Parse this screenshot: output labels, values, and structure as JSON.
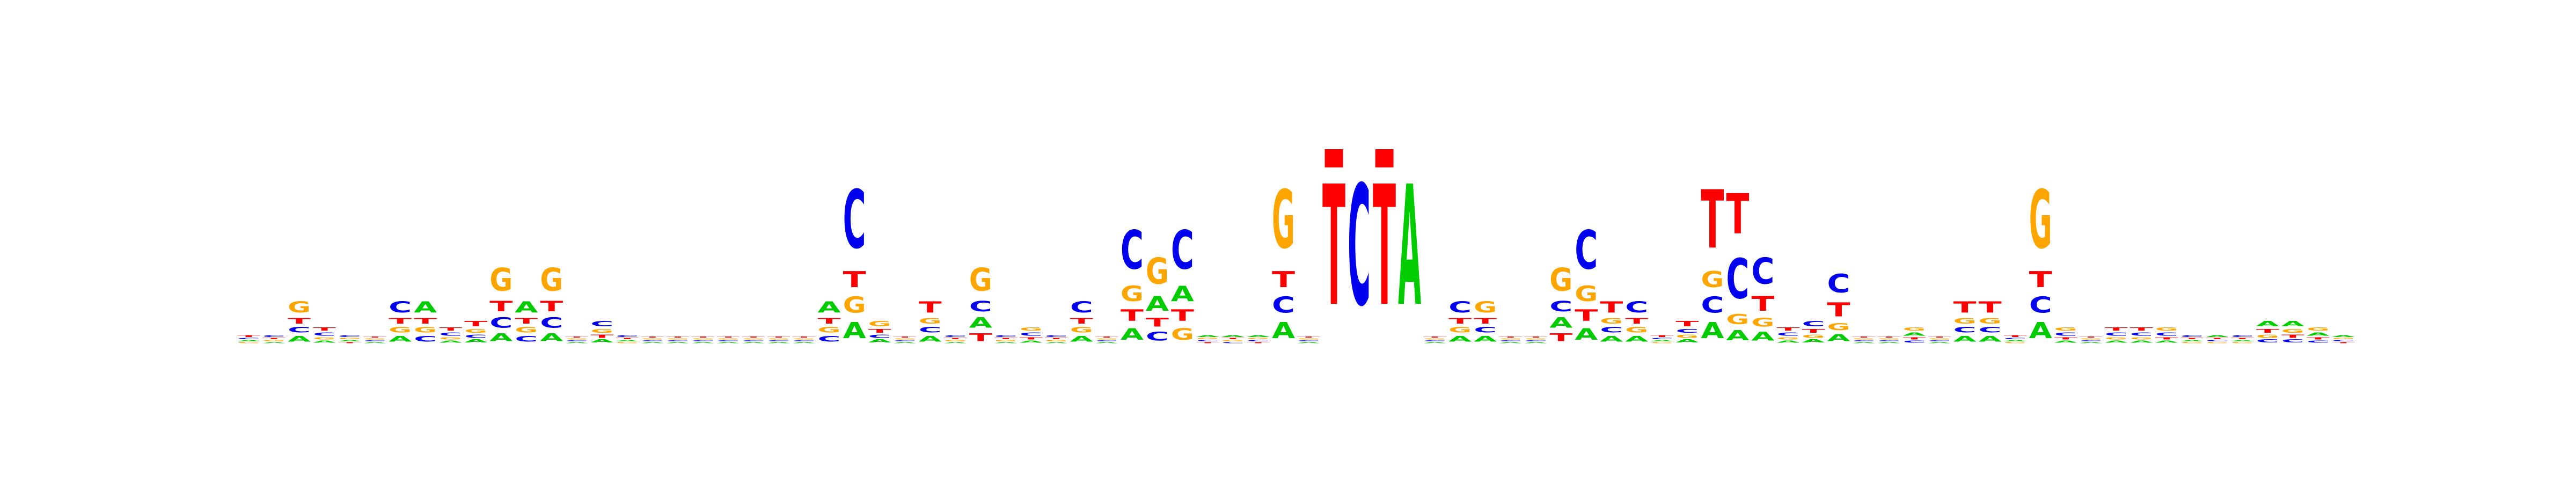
{
  "chart_data": {
    "type": "sequence-logo",
    "alphabet": [
      "A",
      "C",
      "G",
      "T"
    ],
    "colors": {
      "A": "#00cc00",
      "C": "#0000ee",
      "G": "#ffa500",
      "T": "#ff0000"
    },
    "axes_shown": false,
    "grid": false,
    "units": "bits",
    "ylim": [
      0,
      2
    ],
    "info_scale_bits": 0.075,
    "columns": [
      {
        "A": 0.25,
        "C": 0.25,
        "G": 0.2,
        "T": 0.3
      },
      {
        "A": 0.2,
        "C": 0.3,
        "G": 0.25,
        "T": 0.25
      },
      {
        "A": 0.2,
        "C": 0.2,
        "G": 0.4,
        "T": 0.2
      },
      {
        "A": 0.2,
        "C": 0.3,
        "G": 0.2,
        "T": 0.3
      },
      {
        "A": 0.25,
        "C": 0.3,
        "G": 0.25,
        "T": 0.2
      },
      {
        "A": 0.25,
        "C": 0.25,
        "G": 0.25,
        "T": 0.25
      },
      {
        "A": 0.2,
        "C": 0.4,
        "G": 0.2,
        "T": 0.2
      },
      {
        "A": 0.4,
        "C": 0.2,
        "G": 0.2,
        "T": 0.2
      },
      {
        "A": 0.2,
        "C": 0.3,
        "G": 0.2,
        "T": 0.3
      },
      {
        "A": 0.2,
        "C": 0.2,
        "G": 0.25,
        "T": 0.35
      },
      {
        "A": 0.15,
        "C": 0.2,
        "G": 0.45,
        "T": 0.2
      },
      {
        "A": 0.4,
        "C": 0.2,
        "G": 0.2,
        "T": 0.2
      },
      {
        "A": 0.15,
        "C": 0.2,
        "G": 0.45,
        "T": 0.2
      },
      {
        "A": 0.25,
        "C": 0.25,
        "G": 0.25,
        "T": 0.25
      },
      {
        "A": 0.2,
        "C": 0.35,
        "G": 0.25,
        "T": 0.2
      },
      {
        "A": 0.25,
        "C": 0.3,
        "G": 0.2,
        "T": 0.25
      },
      {
        "A": 0.25,
        "C": 0.25,
        "G": 0.25,
        "T": 0.25
      },
      {
        "A": 0.25,
        "C": 0.25,
        "G": 0.25,
        "T": 0.25
      },
      {
        "A": 0.25,
        "C": 0.25,
        "G": 0.25,
        "T": 0.25
      },
      {
        "A": 0.25,
        "C": 0.25,
        "G": 0.25,
        "T": 0.25
      },
      {
        "A": 0.25,
        "C": 0.25,
        "G": 0.25,
        "T": 0.25
      },
      {
        "A": 0.25,
        "C": 0.25,
        "G": 0.25,
        "T": 0.25
      },
      {
        "A": 0.25,
        "C": 0.25,
        "G": 0.25,
        "T": 0.25
      },
      {
        "A": 0.4,
        "C": 0.2,
        "G": 0.2,
        "T": 0.2
      },
      {
        "A": 0.15,
        "C": 0.55,
        "G": 0.15,
        "T": 0.15
      },
      {
        "A": 0.2,
        "C": 0.2,
        "G": 0.35,
        "T": 0.25
      },
      {
        "A": 0.25,
        "C": 0.25,
        "G": 0.25,
        "T": 0.25
      },
      {
        "A": 0.2,
        "C": 0.2,
        "G": 0.2,
        "T": 0.4
      },
      {
        "A": 0.2,
        "C": 0.3,
        "G": 0.25,
        "T": 0.25
      },
      {
        "A": 0.2,
        "C": 0.2,
        "G": 0.45,
        "T": 0.15
      },
      {
        "A": 0.2,
        "C": 0.3,
        "G": 0.25,
        "T": 0.25
      },
      {
        "A": 0.2,
        "C": 0.3,
        "G": 0.3,
        "T": 0.2
      },
      {
        "A": 0.2,
        "C": 0.3,
        "G": 0.25,
        "T": 0.25
      },
      {
        "A": 0.2,
        "C": 0.4,
        "G": 0.2,
        "T": 0.2
      },
      {
        "A": 0.25,
        "C": 0.25,
        "G": 0.25,
        "T": 0.25
      },
      {
        "A": 0.15,
        "C": 0.5,
        "G": 0.2,
        "T": 0.15
      },
      {
        "A": 0.25,
        "C": 0.15,
        "G": 0.45,
        "T": 0.15
      },
      {
        "A": 0.2,
        "C": 0.5,
        "G": 0.15,
        "T": 0.15
      },
      {
        "A": 0.3,
        "C": 0.25,
        "G": 0.25,
        "T": 0.2
      },
      {
        "A": 0.3,
        "C": 0.2,
        "G": 0.25,
        "T": 0.25
      },
      {
        "A": 0.3,
        "C": 0.25,
        "G": 0.25,
        "T": 0.2
      },
      {
        "A": 0.15,
        "C": 0.15,
        "G": 0.55,
        "T": 0.15
      },
      {
        "A": 0.25,
        "C": 0.25,
        "G": 0.25,
        "T": 0.25
      },
      {
        "A": 0.0,
        "C": 0.0,
        "G": 0.0,
        "T": 1.0
      },
      {
        "A": 0.0,
        "C": 1.0,
        "G": 0.0,
        "T": 0.0
      },
      {
        "A": 0.0,
        "C": 0.0,
        "G": 0.0,
        "T": 1.0
      },
      {
        "A": 1.0,
        "C": 0.0,
        "G": 0.0,
        "T": 0.0
      },
      {
        "A": 0.25,
        "C": 0.25,
        "G": 0.25,
        "T": 0.25
      },
      {
        "A": 0.2,
        "C": 0.4,
        "G": 0.2,
        "T": 0.2
      },
      {
        "A": 0.2,
        "C": 0.2,
        "G": 0.4,
        "T": 0.2
      },
      {
        "A": 0.25,
        "C": 0.25,
        "G": 0.25,
        "T": 0.25
      },
      {
        "A": 0.25,
        "C": 0.25,
        "G": 0.25,
        "T": 0.25
      },
      {
        "A": 0.2,
        "C": 0.2,
        "G": 0.45,
        "T": 0.15
      },
      {
        "A": 0.15,
        "C": 0.5,
        "G": 0.2,
        "T": 0.15
      },
      {
        "A": 0.2,
        "C": 0.2,
        "G": 0.2,
        "T": 0.4
      },
      {
        "A": 0.2,
        "C": 0.4,
        "G": 0.2,
        "T": 0.2
      },
      {
        "A": 0.25,
        "C": 0.25,
        "G": 0.2,
        "T": 0.3
      },
      {
        "A": 0.2,
        "C": 0.25,
        "G": 0.2,
        "T": 0.35
      },
      {
        "A": 0.15,
        "C": 0.15,
        "G": 0.15,
        "T": 0.55
      },
      {
        "A": 0.1,
        "C": 0.4,
        "G": 0.1,
        "T": 0.4
      },
      {
        "A": 0.15,
        "C": 0.45,
        "G": 0.15,
        "T": 0.25
      },
      {
        "A": 0.2,
        "C": 0.3,
        "G": 0.2,
        "T": 0.3
      },
      {
        "A": 0.2,
        "C": 0.35,
        "G": 0.2,
        "T": 0.25
      },
      {
        "A": 0.15,
        "C": 0.4,
        "G": 0.15,
        "T": 0.3
      },
      {
        "A": 0.25,
        "C": 0.25,
        "G": 0.25,
        "T": 0.25
      },
      {
        "A": 0.25,
        "C": 0.25,
        "G": 0.25,
        "T": 0.25
      },
      {
        "A": 0.3,
        "C": 0.2,
        "G": 0.3,
        "T": 0.2
      },
      {
        "A": 0.25,
        "C": 0.25,
        "G": 0.25,
        "T": 0.25
      },
      {
        "A": 0.2,
        "C": 0.2,
        "G": 0.2,
        "T": 0.4
      },
      {
        "A": 0.2,
        "C": 0.2,
        "G": 0.2,
        "T": 0.4
      },
      {
        "A": 0.25,
        "C": 0.25,
        "G": 0.2,
        "T": 0.3
      },
      {
        "A": 0.15,
        "C": 0.15,
        "G": 0.55,
        "T": 0.15
      },
      {
        "A": 0.2,
        "C": 0.3,
        "G": 0.3,
        "T": 0.2
      },
      {
        "A": 0.25,
        "C": 0.25,
        "G": 0.25,
        "T": 0.25
      },
      {
        "A": 0.2,
        "C": 0.3,
        "G": 0.2,
        "T": 0.3
      },
      {
        "A": 0.2,
        "C": 0.3,
        "G": 0.2,
        "T": 0.3
      },
      {
        "A": 0.2,
        "C": 0.3,
        "G": 0.3,
        "T": 0.2
      },
      {
        "A": 0.25,
        "C": 0.3,
        "G": 0.2,
        "T": 0.25
      },
      {
        "A": 0.3,
        "C": 0.25,
        "G": 0.2,
        "T": 0.25
      },
      {
        "A": 0.25,
        "C": 0.3,
        "G": 0.2,
        "T": 0.25
      },
      {
        "A": 0.35,
        "C": 0.2,
        "G": 0.2,
        "T": 0.25
      },
      {
        "A": 0.35,
        "C": 0.2,
        "G": 0.25,
        "T": 0.2
      },
      {
        "A": 0.3,
        "C": 0.2,
        "G": 0.3,
        "T": 0.2
      },
      {
        "A": 0.3,
        "C": 0.25,
        "G": 0.25,
        "T": 0.2
      }
    ]
  }
}
